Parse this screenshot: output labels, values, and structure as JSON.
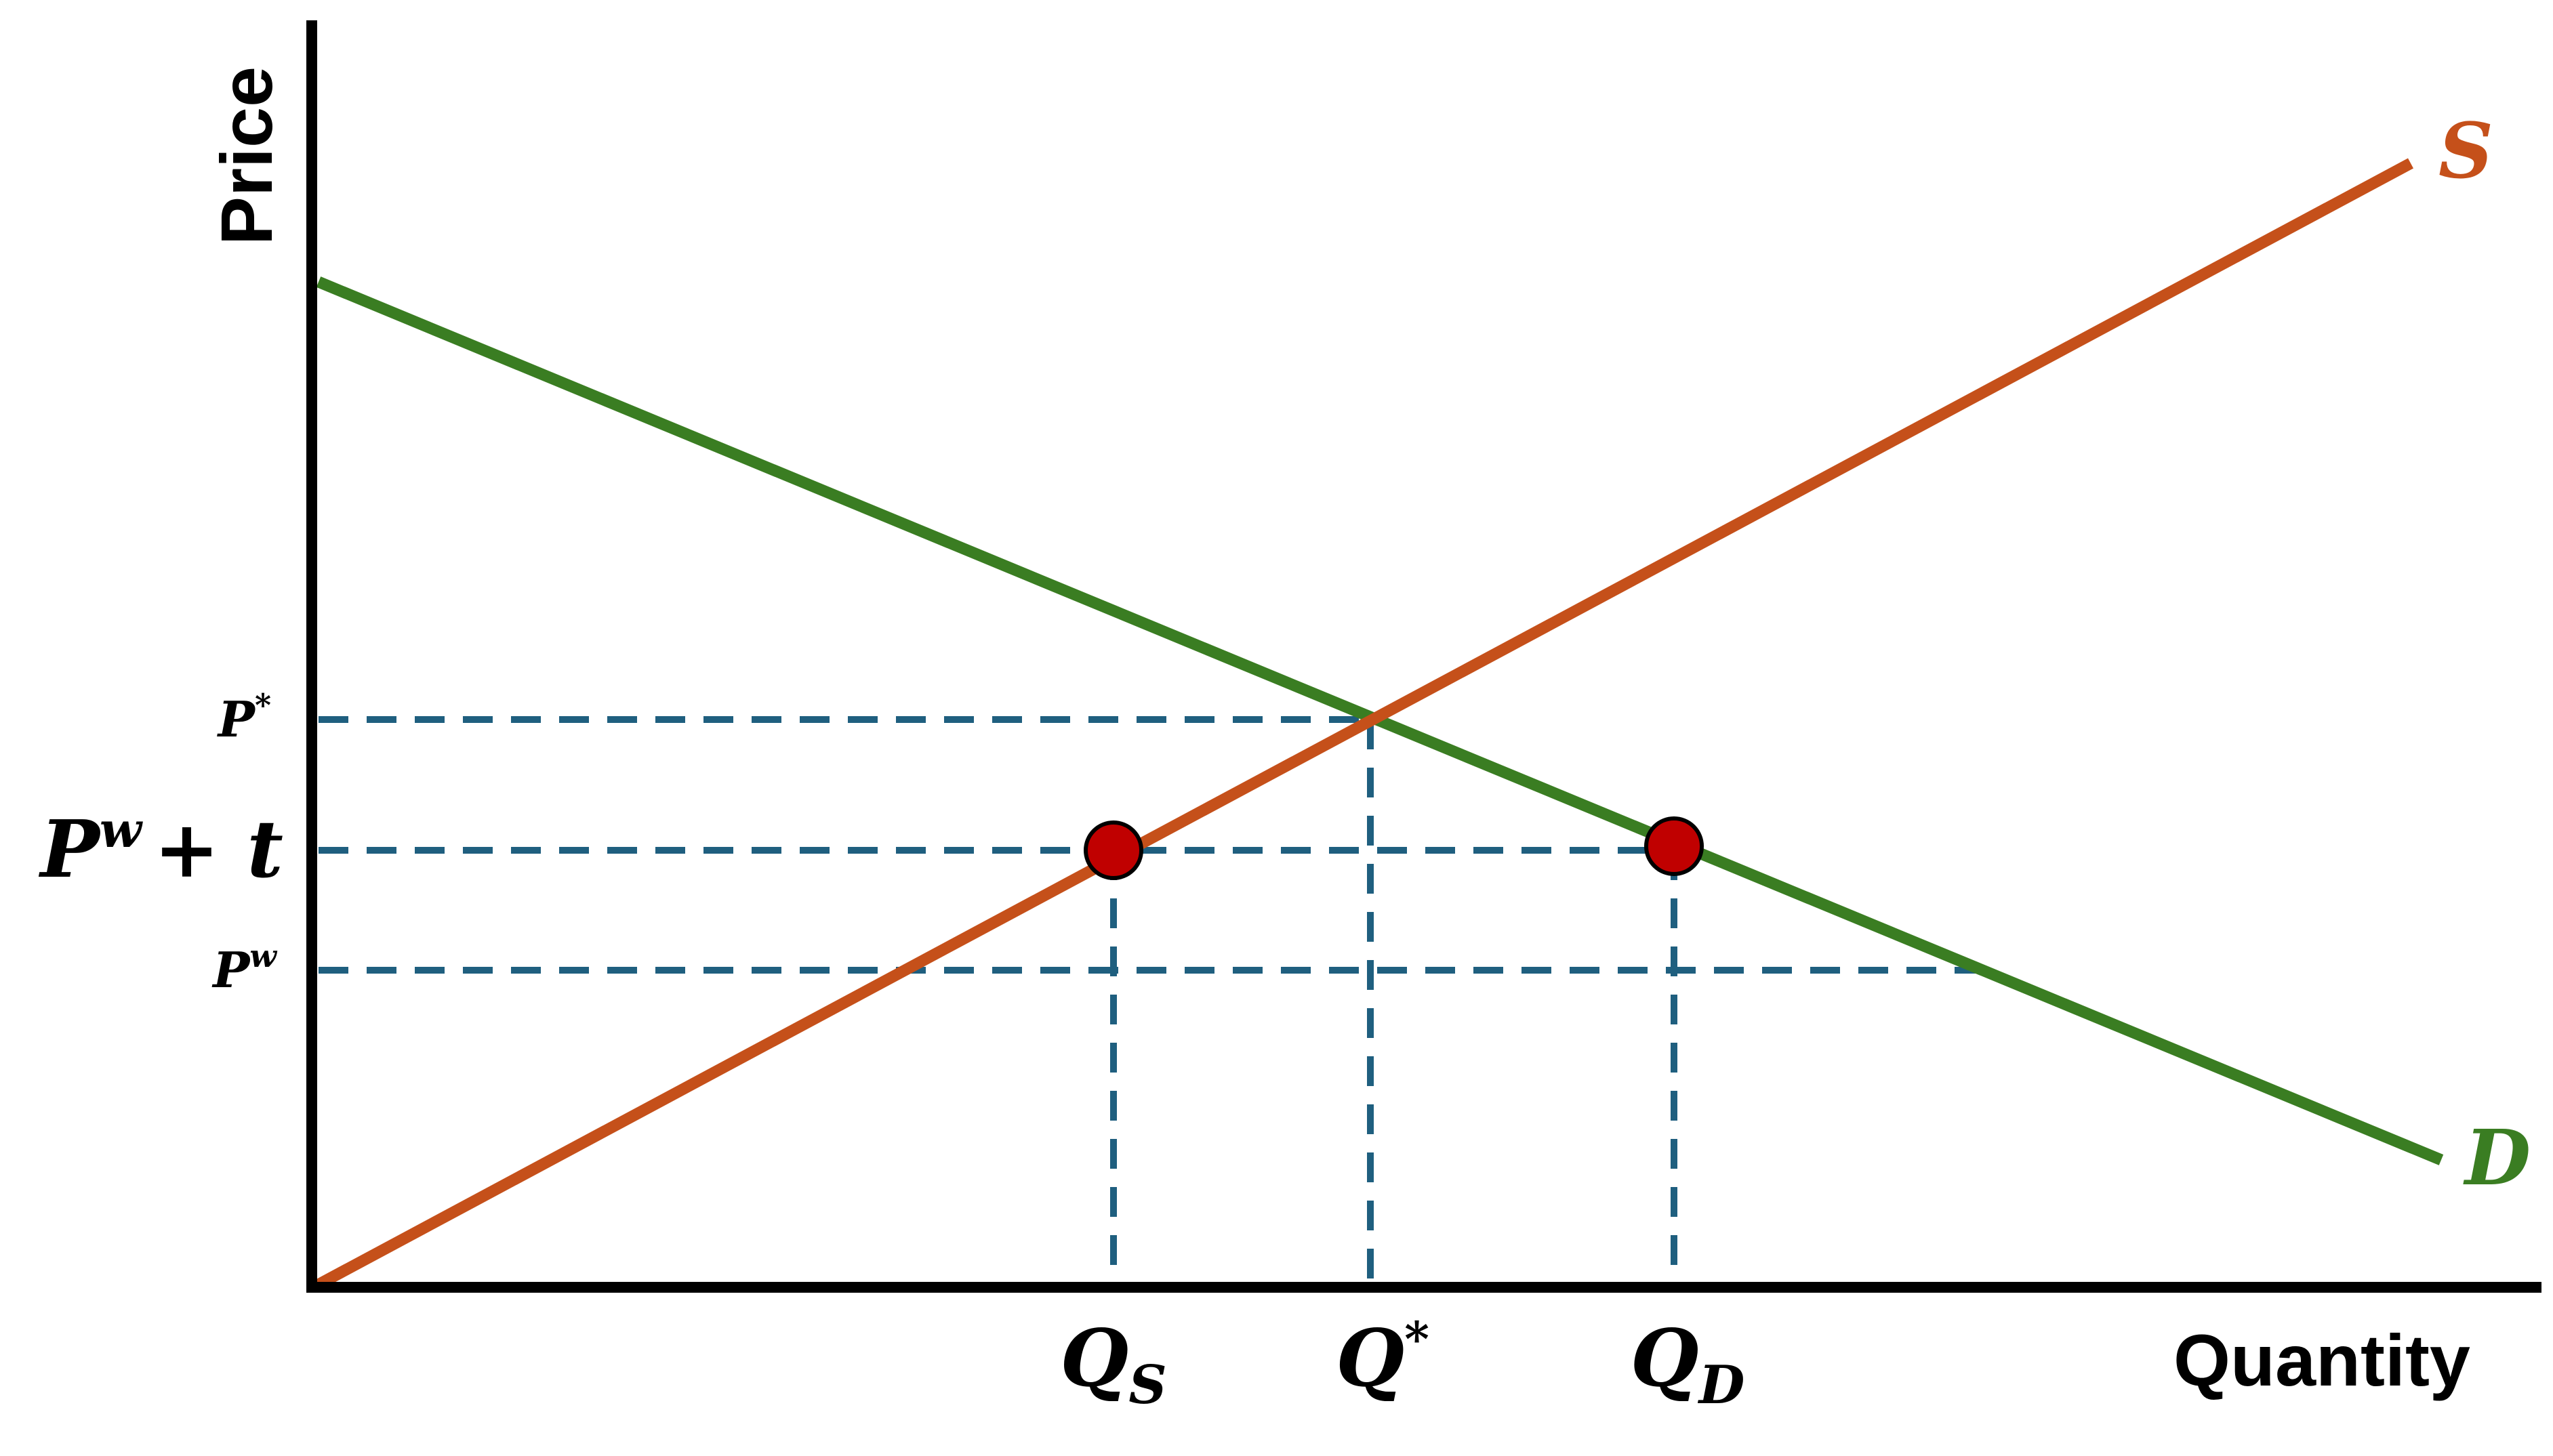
{
  "axes": {
    "y_label": "Price",
    "x_label": "Quantity"
  },
  "curves": {
    "supply": {
      "label": "S",
      "color": "#C5501A"
    },
    "demand": {
      "label": "D",
      "color": "#3A7D22"
    }
  },
  "price_levels": {
    "p_star": {
      "base": "P",
      "sup": "*"
    },
    "pw_plus_t": {
      "base": "P",
      "sup": "w",
      "rest": "+ t"
    },
    "pw": {
      "base": "P",
      "sup": "w"
    }
  },
  "quantity_levels": {
    "qs": {
      "base": "Q",
      "sub": "S"
    },
    "q_star": {
      "base": "Q",
      "sup": "*"
    },
    "qd": {
      "base": "Q",
      "sub": "D"
    }
  },
  "colors": {
    "axis": "#000000",
    "guide_lines": "#1F5F7F",
    "points": "#C00000"
  }
}
